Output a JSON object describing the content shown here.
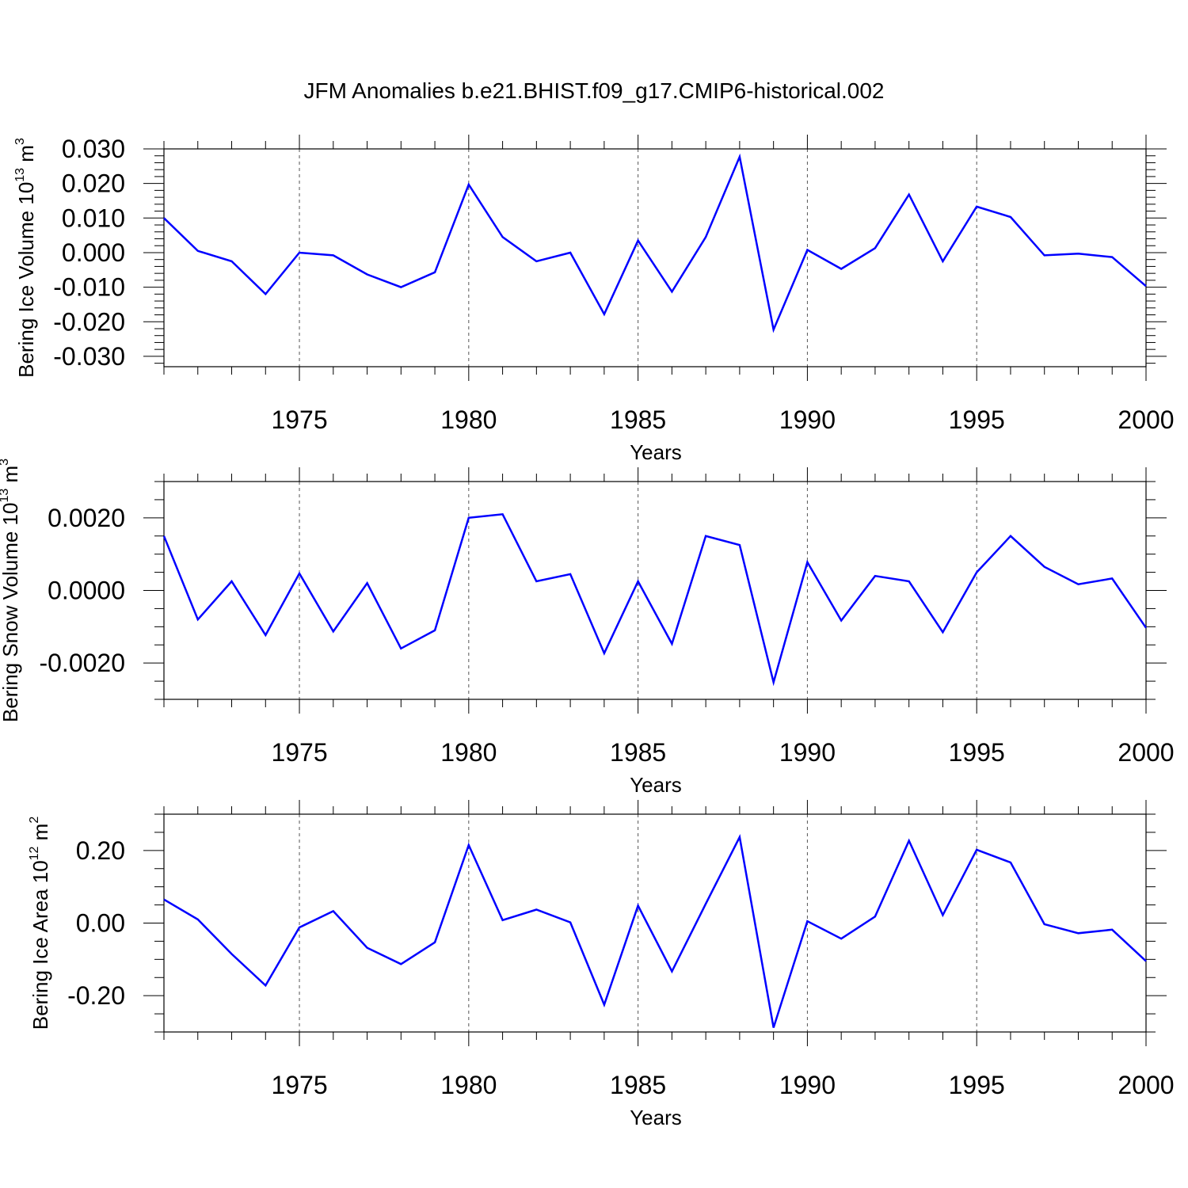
{
  "title": "JFM Anomalies b.e21.BHIST.f09_g17.CMIP6-historical.002",
  "colors": {
    "series": "#0000ff",
    "axes": "#000000",
    "grid": "#555555"
  },
  "chart_data": [
    {
      "type": "line",
      "xlabel": "Years",
      "ylabel_parts": {
        "text": "Bering Ice Volume 10",
        "sup1": "13",
        "mid": " m",
        "sup2": "3"
      },
      "xlim": [
        1971,
        2000
      ],
      "ylim": [
        -0.033,
        0.03
      ],
      "x_ticks": [
        1975,
        1980,
        1985,
        1990,
        1995,
        2000
      ],
      "x_tick_labels": [
        "1975",
        "1980",
        "1985",
        "1990",
        "1995",
        "2000"
      ],
      "y_ticks": [
        0.03,
        0.02,
        0.01,
        0.0,
        -0.01,
        -0.02,
        -0.03
      ],
      "y_tick_labels": [
        "0.030",
        "0.020",
        "0.010",
        "0.000",
        "-0.010",
        "-0.020",
        "-0.030"
      ],
      "y_minor_step": 0.002,
      "grid": "vertical dashed at major x ticks",
      "x": [
        1971,
        1972,
        1973,
        1974,
        1975,
        1976,
        1977,
        1978,
        1979,
        1980,
        1981,
        1982,
        1983,
        1984,
        1985,
        1986,
        1987,
        1988,
        1989,
        1990,
        1991,
        1992,
        1993,
        1994,
        1995,
        1996,
        1997,
        1998,
        1999,
        2000
      ],
      "values": [
        0.01,
        0.0005,
        -0.0025,
        -0.012,
        0.0,
        -0.0008,
        -0.0063,
        -0.01,
        -0.0057,
        0.0197,
        0.0045,
        -0.0025,
        0.0,
        -0.0178,
        0.0035,
        -0.0113,
        0.0045,
        0.0277,
        -0.0223,
        0.0008,
        -0.0047,
        0.0013,
        0.0168,
        -0.0025,
        0.0133,
        0.0103,
        -0.0008,
        -0.0003,
        -0.0013,
        -0.0097
      ]
    },
    {
      "type": "line",
      "xlabel": "Years",
      "ylabel_parts": {
        "text": "Bering Snow Volume 10",
        "sup1": "13",
        "mid": " m",
        "sup2": "3"
      },
      "xlim": [
        1971,
        2000
      ],
      "ylim": [
        -0.003,
        0.003
      ],
      "x_ticks": [
        1975,
        1980,
        1985,
        1990,
        1995,
        2000
      ],
      "x_tick_labels": [
        "1975",
        "1980",
        "1985",
        "1990",
        "1995",
        "2000"
      ],
      "y_ticks": [
        0.002,
        0.0,
        -0.002
      ],
      "y_tick_labels": [
        "0.0020",
        "0.0000",
        "-0.0020"
      ],
      "y_minor_step": 0.0005,
      "grid": "vertical dashed at major x ticks",
      "x": [
        1971,
        1972,
        1973,
        1974,
        1975,
        1976,
        1977,
        1978,
        1979,
        1980,
        1981,
        1982,
        1983,
        1984,
        1985,
        1986,
        1987,
        1988,
        1989,
        1990,
        1991,
        1992,
        1993,
        1994,
        1995,
        1996,
        1997,
        1998,
        1999,
        2000
      ],
      "values": [
        0.0015,
        -0.0008,
        0.00025,
        -0.00123,
        0.00047,
        -0.00113,
        0.0002,
        -0.0016,
        -0.0011,
        0.002,
        0.0021,
        0.00025,
        0.00045,
        -0.00173,
        0.00025,
        -0.00147,
        0.0015,
        0.00125,
        -0.00253,
        0.00078,
        -0.00083,
        0.0004,
        0.00025,
        -0.00115,
        0.0005,
        0.0015,
        0.00065,
        0.00017,
        0.00033,
        -0.00103
      ]
    },
    {
      "type": "line",
      "xlabel": "Years",
      "ylabel_parts": {
        "text": "Bering Ice Area 10",
        "sup1": "12",
        "mid": " m",
        "sup2": "2"
      },
      "xlim": [
        1971,
        2000
      ],
      "ylim": [
        -0.3,
        0.3
      ],
      "x_ticks": [
        1975,
        1980,
        1985,
        1990,
        1995,
        2000
      ],
      "x_tick_labels": [
        "1975",
        "1980",
        "1985",
        "1990",
        "1995",
        "2000"
      ],
      "y_ticks": [
        0.2,
        0.0,
        -0.2
      ],
      "y_tick_labels": [
        "0.20",
        "0.00",
        "-0.20"
      ],
      "y_minor_step": 0.05,
      "grid": "vertical dashed at major x ticks",
      "x": [
        1971,
        1972,
        1973,
        1974,
        1975,
        1976,
        1977,
        1978,
        1979,
        1980,
        1981,
        1982,
        1983,
        1984,
        1985,
        1986,
        1987,
        1988,
        1989,
        1990,
        1991,
        1992,
        1993,
        1994,
        1995,
        1996,
        1997,
        1998,
        1999,
        2000
      ],
      "values": [
        0.065,
        0.01,
        -0.085,
        -0.172,
        -0.012,
        0.033,
        -0.068,
        -0.113,
        -0.053,
        0.215,
        0.008,
        0.037,
        0.002,
        -0.225,
        0.048,
        -0.133,
        0.053,
        0.237,
        -0.288,
        0.005,
        -0.043,
        0.018,
        0.227,
        0.022,
        0.202,
        0.167,
        -0.003,
        -0.028,
        -0.018,
        -0.105
      ]
    }
  ]
}
